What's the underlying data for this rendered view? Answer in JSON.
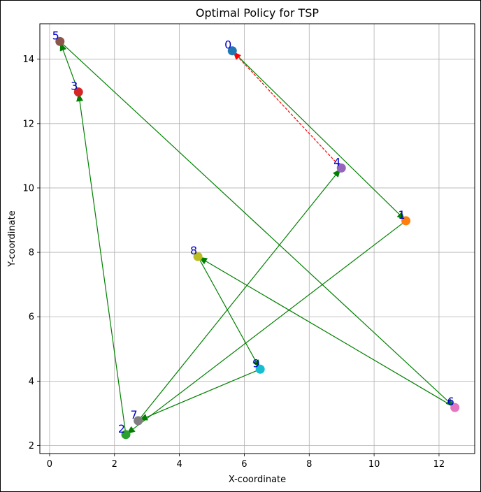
{
  "chart_data": {
    "type": "scatter",
    "title": "Optimal Policy for TSP",
    "xlabel": "X-coordinate",
    "ylabel": "Y-coordinate",
    "xlim": [
      -0.3,
      13.1
    ],
    "ylim": [
      1.75,
      15.1
    ],
    "xticks": [
      0,
      2,
      4,
      6,
      8,
      10,
      12
    ],
    "yticks": [
      2,
      4,
      6,
      8,
      10,
      12,
      14
    ],
    "grid": true,
    "nodes": [
      {
        "id": "0",
        "x": 5.63,
        "y": 14.26,
        "color": "#1f77b4"
      },
      {
        "id": "1",
        "x": 10.98,
        "y": 8.98,
        "color": "#ff7f0e"
      },
      {
        "id": "2",
        "x": 2.35,
        "y": 2.34,
        "color": "#2ca02c"
      },
      {
        "id": "3",
        "x": 0.89,
        "y": 12.98,
        "color": "#d62728"
      },
      {
        "id": "4",
        "x": 8.99,
        "y": 10.62,
        "color": "#9467bd"
      },
      {
        "id": "5",
        "x": 0.32,
        "y": 14.55,
        "color": "#8c564b"
      },
      {
        "id": "6",
        "x": 12.49,
        "y": 3.18,
        "color": "#e377c2"
      },
      {
        "id": "7",
        "x": 2.73,
        "y": 2.77,
        "color": "#7f7f7f"
      },
      {
        "id": "8",
        "x": 4.57,
        "y": 7.87,
        "color": "#bcbd22"
      },
      {
        "id": "9",
        "x": 6.49,
        "y": 4.37,
        "color": "#17becf"
      }
    ],
    "edges": [
      {
        "from": "0",
        "to": "1",
        "style": "solid",
        "color": "#008000"
      },
      {
        "from": "1",
        "to": "2",
        "style": "solid",
        "color": "#008000"
      },
      {
        "from": "2",
        "to": "3",
        "style": "solid",
        "color": "#008000"
      },
      {
        "from": "3",
        "to": "5",
        "style": "solid",
        "color": "#008000"
      },
      {
        "from": "5",
        "to": "6",
        "style": "solid",
        "color": "#008000"
      },
      {
        "from": "6",
        "to": "8",
        "style": "solid",
        "color": "#008000"
      },
      {
        "from": "8",
        "to": "9",
        "style": "solid",
        "color": "#008000"
      },
      {
        "from": "9",
        "to": "7",
        "style": "solid",
        "color": "#008000"
      },
      {
        "from": "7",
        "to": "4",
        "style": "solid",
        "color": "#008000"
      },
      {
        "from": "4",
        "to": "0",
        "style": "dashed",
        "color": "#ff0000"
      }
    ]
  }
}
